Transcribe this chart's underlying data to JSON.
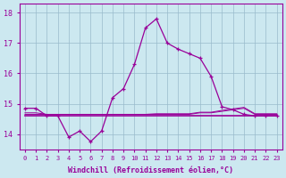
{
  "xlabel": "Windchill (Refroidissement éolien,°C)",
  "x": [
    0,
    1,
    2,
    3,
    4,
    5,
    6,
    7,
    8,
    9,
    10,
    11,
    12,
    13,
    14,
    15,
    16,
    17,
    18,
    19,
    20,
    21,
    22,
    23
  ],
  "y_main": [
    14.85,
    14.85,
    14.6,
    14.6,
    13.9,
    14.1,
    13.75,
    14.1,
    15.2,
    15.5,
    16.3,
    17.5,
    17.8,
    17.0,
    16.8,
    16.65,
    16.5,
    15.9,
    14.9,
    14.8,
    14.65,
    14.6,
    14.6,
    14.6
  ],
  "y_flat1": [
    14.6,
    14.6,
    14.6,
    14.6,
    14.6,
    14.6,
    14.6,
    14.6,
    14.6,
    14.6,
    14.6,
    14.6,
    14.6,
    14.6,
    14.6,
    14.6,
    14.6,
    14.6,
    14.6,
    14.6,
    14.6,
    14.6,
    14.6,
    14.6
  ],
  "y_flat2": [
    14.65,
    14.65,
    14.65,
    14.65,
    14.65,
    14.65,
    14.65,
    14.65,
    14.65,
    14.65,
    14.65,
    14.65,
    14.65,
    14.65,
    14.65,
    14.65,
    14.7,
    14.7,
    14.75,
    14.8,
    14.85,
    14.65,
    14.65,
    14.65
  ],
  "y_flat3": [
    14.7,
    14.7,
    14.65,
    14.65,
    14.65,
    14.65,
    14.65,
    14.65,
    14.65,
    14.65,
    14.65,
    14.65,
    14.67,
    14.67,
    14.67,
    14.67,
    14.72,
    14.72,
    14.78,
    14.83,
    14.88,
    14.67,
    14.67,
    14.67
  ],
  "line_color": "#990099",
  "bg_color": "#cce8f0",
  "grid_color": "#99bbcc",
  "ylim": [
    13.5,
    18.3
  ],
  "xlim": [
    -0.5,
    23.5
  ],
  "yticks": [
    14,
    15,
    16,
    17,
    18
  ],
  "xticks": [
    0,
    1,
    2,
    3,
    4,
    5,
    6,
    7,
    8,
    9,
    10,
    11,
    12,
    13,
    14,
    15,
    16,
    17,
    18,
    19,
    20,
    21,
    22,
    23
  ]
}
